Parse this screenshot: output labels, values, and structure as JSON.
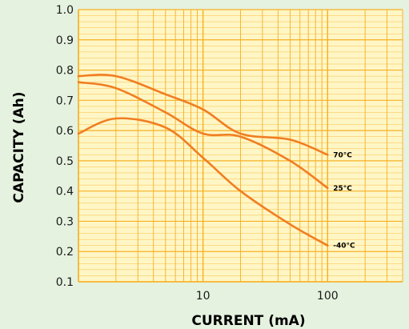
{
  "chart_data": {
    "type": "line",
    "title": "",
    "xlabel": "CURRENT (mA)",
    "ylabel": "CAPACITY (Ah)",
    "x_scale": "log",
    "xlim": [
      1,
      400
    ],
    "ylim": [
      0.1,
      1.0
    ],
    "x_tick_labels": [
      {
        "value": 10,
        "label": "10"
      },
      {
        "value": 100,
        "label": "100"
      }
    ],
    "y_tick_labels": [
      {
        "value": 0.1,
        "label": "0.1"
      },
      {
        "value": 0.2,
        "label": "0.2"
      },
      {
        "value": 0.3,
        "label": "0.3"
      },
      {
        "value": 0.4,
        "label": "0.4"
      },
      {
        "value": 0.5,
        "label": "0.5"
      },
      {
        "value": 0.6,
        "label": "0.6"
      },
      {
        "value": 0.7,
        "label": "0.7"
      },
      {
        "value": 0.8,
        "label": "0.8"
      },
      {
        "value": 0.9,
        "label": "0.9"
      },
      {
        "value": 1.0,
        "label": "1.0"
      }
    ],
    "grid": true,
    "series": [
      {
        "name": "70°C",
        "x": [
          1,
          2,
          5,
          10,
          20,
          50,
          100
        ],
        "y": [
          0.78,
          0.78,
          0.72,
          0.67,
          0.59,
          0.57,
          0.52
        ]
      },
      {
        "name": "25°C",
        "x": [
          1,
          2,
          5,
          10,
          20,
          50,
          100
        ],
        "y": [
          0.76,
          0.74,
          0.66,
          0.59,
          0.58,
          0.5,
          0.41
        ]
      },
      {
        "name": "-40°C",
        "x": [
          1,
          2,
          5,
          10,
          20,
          50,
          100
        ],
        "y": [
          0.59,
          0.64,
          0.61,
          0.51,
          0.4,
          0.29,
          0.22
        ]
      }
    ],
    "colors": {
      "plot_background": "#fff6c6",
      "grid": "#f6b023",
      "series": "#f07e22",
      "page_background": "#e6f2e0"
    }
  }
}
